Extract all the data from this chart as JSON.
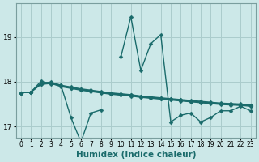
{
  "title": "",
  "xlabel": "Humidex (Indice chaleur)",
  "ylabel": "",
  "bg_color": "#cce8e8",
  "grid_color": "#aacccc",
  "line_color": "#1a6b6b",
  "x": [
    0,
    1,
    2,
    3,
    4,
    5,
    6,
    7,
    8,
    9,
    10,
    11,
    12,
    13,
    14,
    15,
    16,
    17,
    18,
    19,
    20,
    21,
    22,
    23
  ],
  "series1": [
    17.75,
    17.77,
    18.01,
    17.95,
    17.92,
    17.2,
    16.65,
    17.3,
    17.37,
    null,
    18.55,
    19.45,
    18.25,
    18.85,
    19.05,
    17.1,
    17.25,
    17.3,
    17.1,
    17.2,
    17.35,
    17.35,
    17.45,
    17.35
  ],
  "series2": [
    17.75,
    17.77,
    17.97,
    17.99,
    17.92,
    17.88,
    17.84,
    17.81,
    17.78,
    17.75,
    17.73,
    17.71,
    17.68,
    17.66,
    17.64,
    17.62,
    17.6,
    17.58,
    17.56,
    17.54,
    17.52,
    17.51,
    17.5,
    17.48
  ],
  "series3": [
    17.75,
    17.77,
    17.96,
    17.98,
    17.91,
    17.87,
    17.83,
    17.8,
    17.77,
    17.74,
    17.72,
    17.7,
    17.67,
    17.65,
    17.63,
    17.61,
    17.59,
    17.57,
    17.55,
    17.53,
    17.51,
    17.5,
    17.49,
    17.47
  ],
  "series4": [
    17.75,
    17.77,
    17.95,
    17.97,
    17.9,
    17.86,
    17.82,
    17.79,
    17.76,
    17.73,
    17.71,
    17.69,
    17.66,
    17.64,
    17.62,
    17.6,
    17.58,
    17.56,
    17.54,
    17.52,
    17.5,
    17.49,
    17.48,
    17.46
  ],
  "series5": [
    17.75,
    17.77,
    17.94,
    17.96,
    17.89,
    17.85,
    17.81,
    17.78,
    17.75,
    17.72,
    17.7,
    17.68,
    17.65,
    17.63,
    17.61,
    17.59,
    17.57,
    17.55,
    17.53,
    17.51,
    17.49,
    17.48,
    17.47,
    17.45
  ],
  "ylim": [
    16.75,
    19.75
  ],
  "yticks": [
    17,
    18,
    19
  ],
  "xticks": [
    0,
    1,
    2,
    3,
    4,
    5,
    6,
    7,
    8,
    9,
    10,
    11,
    12,
    13,
    14,
    15,
    16,
    17,
    18,
    19,
    20,
    21,
    22,
    23
  ],
  "marker": "D",
  "markersize": 2.5,
  "linewidth": 1.0,
  "xlabel_fontsize": 7.5,
  "tick_fontsize": 6.5,
  "xtick_fontsize": 5.5
}
